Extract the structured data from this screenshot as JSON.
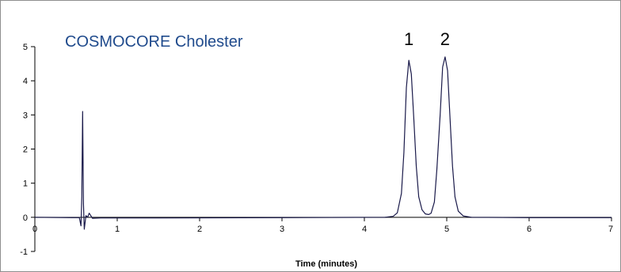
{
  "chart_data": {
    "type": "line",
    "title": "COSMOCORE Cholester",
    "xlabel": "Time (minutes)",
    "ylabel": "",
    "xlim": [
      0,
      7
    ],
    "ylim": [
      -1,
      5
    ],
    "x_ticks": [
      "0",
      "1",
      "2",
      "3",
      "4",
      "5",
      "6",
      "7"
    ],
    "y_ticks": [
      "-1",
      "0",
      "1",
      "2",
      "3",
      "4",
      "5"
    ],
    "grid": false,
    "colors": {
      "trace": "#1a1a4a",
      "title": "#1f4a8c",
      "axis": "#000000"
    },
    "annotations": [
      {
        "text": "1",
        "x": 4.54
      },
      {
        "text": "2",
        "x": 4.98
      }
    ],
    "series": [
      {
        "points": [
          [
            0.0,
            0.0
          ],
          [
            0.45,
            -0.01
          ],
          [
            0.54,
            -0.01
          ],
          [
            0.56,
            -0.25
          ],
          [
            0.57,
            0.6
          ],
          [
            0.58,
            3.1
          ],
          [
            0.59,
            0.4
          ],
          [
            0.6,
            -0.35
          ],
          [
            0.62,
            0.05
          ],
          [
            0.64,
            0.0
          ],
          [
            0.66,
            0.12
          ],
          [
            0.7,
            -0.03
          ],
          [
            0.8,
            -0.02
          ],
          [
            1.5,
            -0.02
          ],
          [
            3.0,
            -0.01
          ],
          [
            4.25,
            0.0
          ],
          [
            4.35,
            0.03
          ],
          [
            4.4,
            0.13
          ],
          [
            4.45,
            0.7
          ],
          [
            4.48,
            1.9
          ],
          [
            4.51,
            3.8
          ],
          [
            4.54,
            4.6
          ],
          [
            4.57,
            4.2
          ],
          [
            4.6,
            2.9
          ],
          [
            4.63,
            1.5
          ],
          [
            4.66,
            0.6
          ],
          [
            4.7,
            0.22
          ],
          [
            4.74,
            0.1
          ],
          [
            4.78,
            0.08
          ],
          [
            4.81,
            0.12
          ],
          [
            4.85,
            0.45
          ],
          [
            4.88,
            1.4
          ],
          [
            4.92,
            3.0
          ],
          [
            4.95,
            4.4
          ],
          [
            4.98,
            4.7
          ],
          [
            5.01,
            4.3
          ],
          [
            5.04,
            2.9
          ],
          [
            5.07,
            1.5
          ],
          [
            5.1,
            0.6
          ],
          [
            5.14,
            0.18
          ],
          [
            5.2,
            0.04
          ],
          [
            5.3,
            0.0
          ],
          [
            6.0,
            -0.01
          ],
          [
            7.0,
            -0.01
          ]
        ]
      }
    ]
  }
}
